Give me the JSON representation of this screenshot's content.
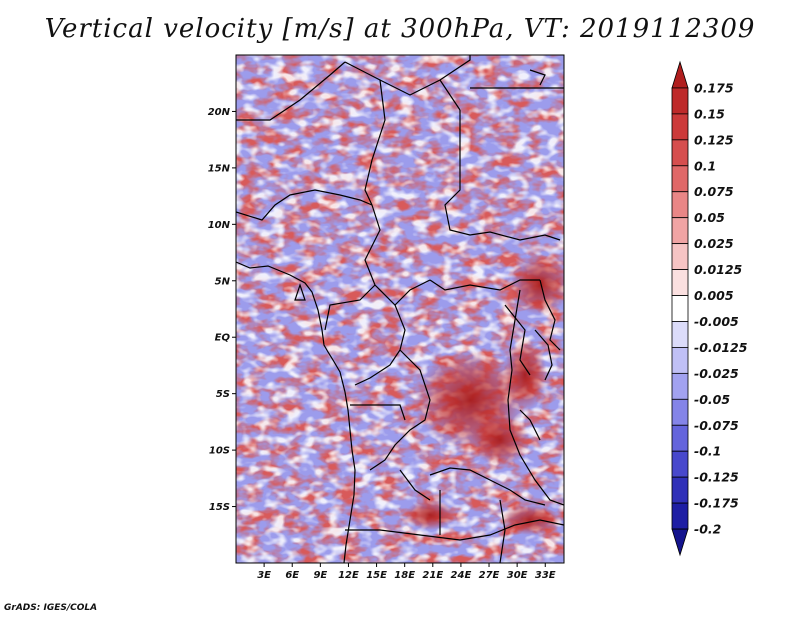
{
  "title": "Vertical velocity [m/s] at 300hPa, VT: 2019112309",
  "footer": "GrADS: IGES/COLA",
  "map": {
    "lon_range": [
      0,
      35
    ],
    "lat_range": [
      -20,
      25
    ],
    "lat_ticks": [
      "20N",
      "15N",
      "10N",
      "5N",
      "EQ",
      "5S",
      "10S",
      "15S"
    ],
    "lon_ticks": [
      "3E",
      "6E",
      "9E",
      "12E",
      "15E",
      "18E",
      "21E",
      "24E",
      "27E",
      "30E",
      "33E"
    ]
  },
  "colorbar": {
    "labels": [
      "0.175",
      "0.15",
      "0.125",
      "0.1",
      "0.075",
      "0.05",
      "0.025",
      "0.0125",
      "0.005",
      "-0.005",
      "-0.0125",
      "-0.025",
      "-0.05",
      "-0.075",
      "-0.1",
      "-0.125",
      "-0.175",
      "-0.2"
    ],
    "colors": [
      "#b01e1e",
      "#be2a2a",
      "#cc3a3a",
      "#d64e4e",
      "#e06868",
      "#e98686",
      "#f0a4a4",
      "#f6c4c4",
      "#fbe0e0",
      "#ffffff",
      "#dcdcfa",
      "#c0c0f6",
      "#a2a2f0",
      "#8484e8",
      "#6464dc",
      "#4848cc",
      "#3030b8",
      "#1e1ea4",
      "#14148e"
    ]
  }
}
